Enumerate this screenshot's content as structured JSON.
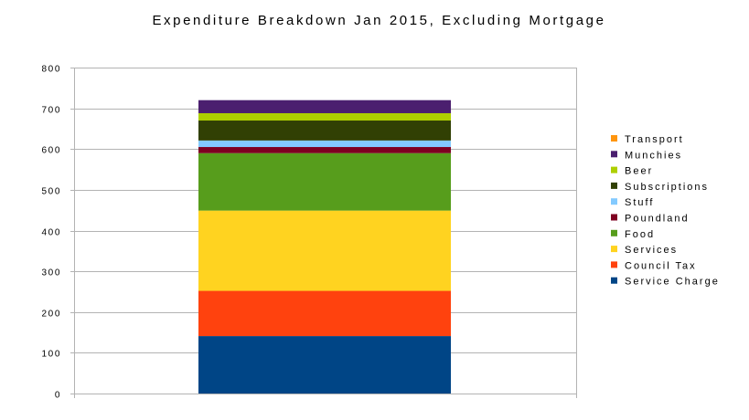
{
  "chart_data": {
    "type": "bar",
    "stacked": true,
    "title": "Expenditure Breakdown Jan 2015, Excluding Mortgage",
    "xlabel": "",
    "ylabel": "",
    "ylim": [
      0,
      800
    ],
    "yticks": [
      0,
      100,
      200,
      300,
      400,
      500,
      600,
      700,
      800
    ],
    "categories": [
      ""
    ],
    "grid": true,
    "legend_position": "right",
    "series": [
      {
        "name": "Service Charge",
        "values": [
          141
        ],
        "color": "#004586"
      },
      {
        "name": "Council Tax",
        "values": [
          111
        ],
        "color": "#ff420e"
      },
      {
        "name": "Services",
        "values": [
          197
        ],
        "color": "#ffd320"
      },
      {
        "name": "Food",
        "values": [
          141
        ],
        "color": "#579d1c"
      },
      {
        "name": "Poundland",
        "values": [
          15
        ],
        "color": "#7e0021"
      },
      {
        "name": "Stuff",
        "values": [
          16
        ],
        "color": "#83caff"
      },
      {
        "name": "Subscriptions",
        "values": [
          49
        ],
        "color": "#314004"
      },
      {
        "name": "Beer",
        "values": [
          18
        ],
        "color": "#aecf00"
      },
      {
        "name": "Munchies",
        "values": [
          32
        ],
        "color": "#4b1f6f"
      },
      {
        "name": "Transport",
        "values": [
          0
        ],
        "color": "#ff950e"
      }
    ]
  }
}
